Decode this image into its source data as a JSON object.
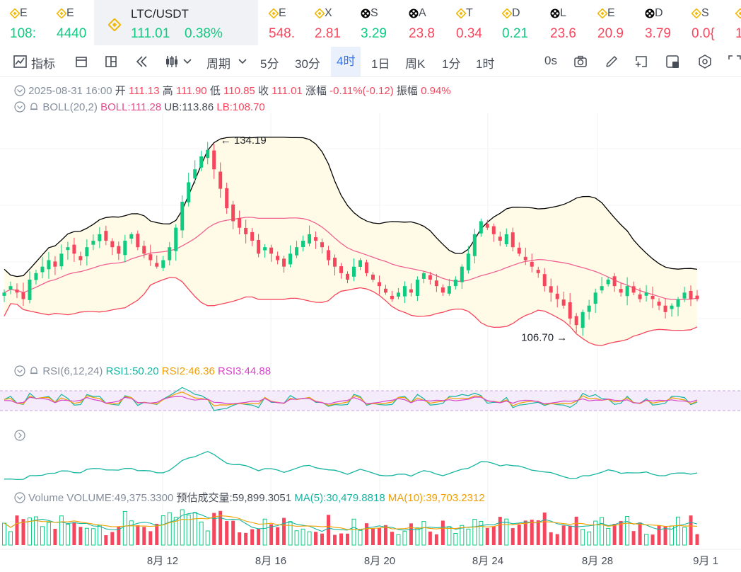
{
  "ticker": {
    "items": [
      {
        "name": "E",
        "price": "108:",
        "dir": "up",
        "icon": "binance-icon"
      },
      {
        "name": "E",
        "price": "4440",
        "dir": "up",
        "icon": "binance-icon"
      },
      {
        "name": "LTC/USDT",
        "price": "111.01",
        "pct": "0.38%",
        "dir": "up",
        "icon": "binance-icon",
        "active": true
      },
      {
        "name": "E",
        "price": "548.",
        "dir": "down",
        "icon": "binance-icon"
      },
      {
        "name": "X",
        "price": "2.81",
        "dir": "down",
        "icon": "binance-icon"
      },
      {
        "name": "S",
        "price": "3.29",
        "dir": "up",
        "icon": "token-icon"
      },
      {
        "name": "A",
        "price": "23.8",
        "dir": "down",
        "icon": "token-icon"
      },
      {
        "name": "T",
        "price": "0.34",
        "dir": "down",
        "icon": "binance-icon"
      },
      {
        "name": "D",
        "price": "0.21",
        "dir": "up",
        "icon": "binance-icon"
      },
      {
        "name": "L",
        "price": "23.6",
        "dir": "down",
        "icon": "token-icon"
      },
      {
        "name": "E",
        "price": "20.9",
        "dir": "down",
        "icon": "binance-icon"
      },
      {
        "name": "D",
        "price": "3.79",
        "dir": "down",
        "icon": "token-icon"
      },
      {
        "name": "S",
        "price": "0.0{",
        "dir": "down",
        "icon": "binance-icon"
      },
      {
        "name": "",
        "price": "1",
        "dir": "down",
        "icon": "binance-icon"
      }
    ]
  },
  "toolbar": {
    "indicator_label": "指标",
    "period_label": "周期",
    "intervals": [
      "5分",
      "30分",
      "4时",
      "1日",
      "周K",
      "1分",
      "1时"
    ],
    "selected_interval": "4时",
    "countdown": "0s"
  },
  "ohlc": {
    "date": "2025-08-31 16:00",
    "open_label": "开",
    "open": "111.13",
    "high_label": "高",
    "high": "111.90",
    "low_label": "低",
    "low": "110.85",
    "close_label": "收",
    "close": "111.01",
    "change_label": "涨幅",
    "change": "-0.11%(-0.12)",
    "amp_label": "振幅",
    "amp": "0.94%"
  },
  "boll": {
    "title": "BOLL(20,2)",
    "mid": "BOLL:111.28",
    "ub": "UB:113.86",
    "lb": "LB:108.70"
  },
  "annotations": {
    "high": "134.19",
    "low": "106.70"
  },
  "rsi": {
    "title": "RSI(6,12,24)",
    "rsi1": "RSI1:50.20",
    "rsi2": "RSI2:46.36",
    "rsi3": "RSI3:44.88"
  },
  "volume": {
    "title": "Volume",
    "vol": "VOLUME:49,375.3300",
    "est": "预估成交量:59,899.3051",
    "ma5": "MA(5):30,479.8818",
    "ma10": "MA(10):39,703.2312"
  },
  "xaxis": {
    "labels": [
      "8月 12",
      "8月 16",
      "8月 20",
      "8月 24",
      "8月 28",
      "9月 1"
    ]
  },
  "colors": {
    "up": "#0ecb81",
    "down": "#f6465d",
    "boll_mid": "#f06292",
    "boll_band": "#000000",
    "boll_lb": "#f6465d",
    "band_fill": "#fffbe6",
    "rsi1": "#16b5a0",
    "rsi2": "#f0a000",
    "rsi3": "#d645c9",
    "ma5": "#16b5a0",
    "ma10": "#f0a000"
  },
  "chart_data": {
    "type": "candlestick",
    "interval": "4h",
    "x_range": [
      "8月 12",
      "9月 1"
    ],
    "candles_summary": {
      "high": 134.19,
      "low": 106.7,
      "last_close": 111.01
    },
    "boll": {
      "mid": 111.28,
      "ub": 113.86,
      "lb": 108.7
    },
    "rsi": {
      "rsi1": 50.2,
      "rsi2": 46.36,
      "rsi3": 44.88
    },
    "volume": {
      "last": 49375.33,
      "estimated": 59899.3051,
      "ma5": 30479.8818,
      "ma10": 39703.2312
    },
    "close_path": [
      112,
      113,
      112,
      111,
      114,
      115,
      116,
      117,
      116,
      118,
      119,
      118,
      117,
      119,
      120,
      121,
      120,
      119,
      118,
      120,
      121,
      119,
      118,
      117,
      116,
      117,
      119,
      122,
      126,
      129,
      131,
      133,
      134,
      131,
      128,
      125,
      123,
      122,
      121,
      120,
      118,
      119,
      118,
      117,
      116,
      118,
      119,
      120,
      121,
      120,
      119,
      117,
      116,
      115,
      114,
      116,
      117,
      115,
      114,
      113,
      112,
      111,
      112,
      113,
      112,
      114,
      115,
      114,
      113,
      112,
      113,
      114,
      116,
      118,
      121,
      123,
      122,
      121,
      120,
      121,
      119,
      118,
      117,
      116,
      115,
      113,
      112,
      111,
      110,
      108,
      107,
      109,
      110,
      112,
      113,
      114,
      113,
      112,
      113,
      112,
      111,
      112,
      111,
      110,
      109,
      110,
      111,
      112,
      111,
      111
    ]
  }
}
